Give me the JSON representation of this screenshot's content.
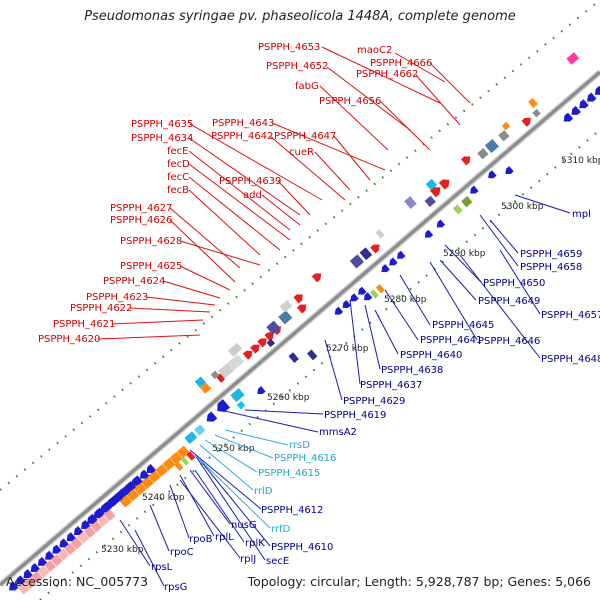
{
  "title": "Pseudomonas syringae pv. phaseolicola 1448A, complete genome",
  "accession": "Accession: NC_005773",
  "topology": "Topology: circular; Length: 5,928,787 bp; Genes: 5,066",
  "colors": {
    "strand_plus_labels": "#cc0000",
    "strand_minus_labels": "#00008b",
    "rrna_labels": "#22a6c8",
    "backbone": "#8c8c8c",
    "ticks": "#2e8b2e"
  },
  "kbp_ticks": [
    "5230 kbp",
    "5240 kbp",
    "5250 kbp",
    "5260 kbp",
    "5270 kbp",
    "5280 kbp",
    "5290 kbp",
    "5300 kbp",
    "5310 kbp"
  ],
  "labels_plus": [
    "maoC2",
    "PSPPH_4653",
    "PSPPH_4666",
    "PSPPH_4652",
    "PSPPH_4662",
    "fabG",
    "PSPPH_4656",
    "PSPPH_4643",
    "PSPPH_4635",
    "PSPPH_4642",
    "PSPPH_4647",
    "PSPPH_4634",
    "cueR",
    "fecE",
    "fecD",
    "fecC",
    "PSPPH_4639",
    "fecB",
    "add",
    "PSPPH_4627",
    "PSPPH_4626",
    "PSPPH_4628",
    "PSPPH_4625",
    "PSPPH_4624",
    "PSPPH_4623",
    "PSPPH_4622",
    "PSPPH_4621",
    "PSPPH_4620"
  ],
  "labels_minus": [
    "mpl",
    "PSPPH_4659",
    "PSPPH_4658",
    "PSPPH_4650",
    "PSPPH_4649",
    "PSPPH_4657",
    "PSPPH_4645",
    "PSPPH_4641",
    "PSPPH_4646",
    "PSPPH_4640",
    "PSPPH_4648",
    "PSPPH_4638",
    "PSPPH_4637",
    "PSPPH_4629",
    "PSPPH_4619",
    "mmsA2",
    "PSPPH_4612",
    "nusG",
    "rpoB",
    "rplL",
    "rplK",
    "PSPPH_4610",
    "secE",
    "rpoC",
    "rplJ",
    "rpsL",
    "rpsG"
  ],
  "labels_rrna": [
    "rrsD",
    "PSPPH_4616",
    "PSPPH_4615",
    "rrlD",
    "rrfD"
  ]
}
